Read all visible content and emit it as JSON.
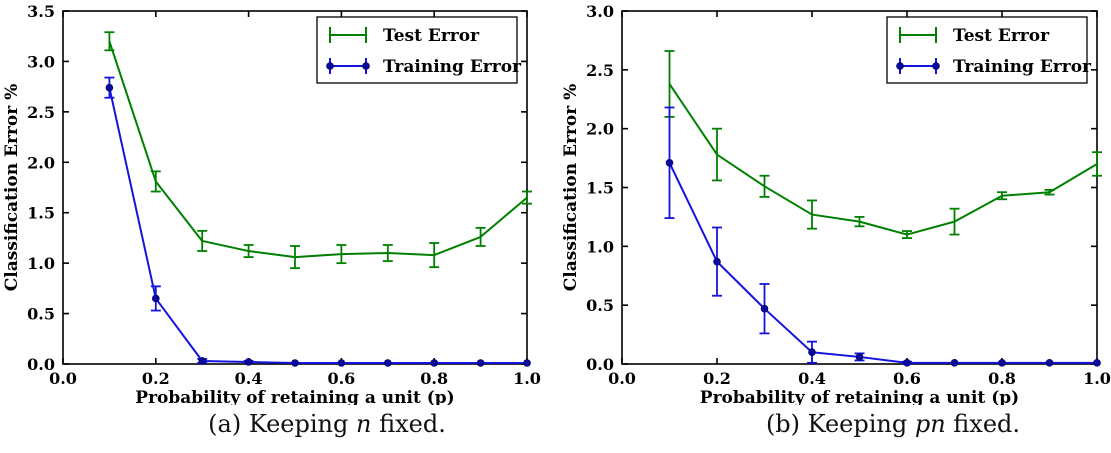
{
  "figure": {
    "background": "#ffffff",
    "axis_color": "#000000",
    "text_color": "#000000"
  },
  "legend": {
    "entries": [
      {
        "label": "Test Error",
        "color": "#008000",
        "marker": "none"
      },
      {
        "label": "Training Error",
        "color": "#1414dc",
        "marker": "circle"
      }
    ]
  },
  "chart_data": [
    {
      "id": "a",
      "type": "line",
      "title": "",
      "xlabel": "Probability of retaining a unit (p)",
      "ylabel": "Classification Error %",
      "xlim": [
        0.0,
        1.0
      ],
      "ylim": [
        0.0,
        3.5
      ],
      "xticks": [
        0.0,
        0.2,
        0.4,
        0.6,
        0.8,
        1.0
      ],
      "xtick_labels": [
        "0.0",
        "0.2",
        "0.4",
        "0.6",
        "0.8",
        "1.0"
      ],
      "yticks": [
        0.0,
        0.5,
        1.0,
        1.5,
        2.0,
        2.5,
        3.0,
        3.5
      ],
      "ytick_labels": [
        "0.0",
        "0.5",
        "1.0",
        "1.5",
        "2.0",
        "2.5",
        "3.0",
        "3.5"
      ],
      "x": [
        0.1,
        0.2,
        0.3,
        0.4,
        0.5,
        0.6,
        0.7,
        0.8,
        0.9,
        1.0
      ],
      "legend_position": "upper right",
      "grid": false,
      "series": [
        {
          "name": "Test Error",
          "color": "#008000",
          "marker": "none",
          "values": [
            3.2,
            1.81,
            1.22,
            1.12,
            1.06,
            1.09,
            1.1,
            1.08,
            1.26,
            1.65
          ],
          "errors": [
            0.09,
            0.1,
            0.1,
            0.06,
            0.11,
            0.09,
            0.08,
            0.12,
            0.09,
            0.06
          ]
        },
        {
          "name": "Training Error",
          "color": "#1414dc",
          "marker": "circle",
          "values": [
            2.74,
            0.65,
            0.03,
            0.02,
            0.01,
            0.01,
            0.01,
            0.01,
            0.01,
            0.01
          ],
          "errors": [
            0.1,
            0.12,
            0.02,
            0.01,
            0.0,
            0.0,
            0.0,
            0.0,
            0.0,
            0.0
          ]
        }
      ],
      "caption": {
        "prefix": "(a) Keeping ",
        "italic": "n",
        "suffix": " fixed."
      }
    },
    {
      "id": "b",
      "type": "line",
      "title": "",
      "xlabel": "Probability of retaining a unit (p)",
      "ylabel": "Classification Error %",
      "xlim": [
        0.0,
        1.0
      ],
      "ylim": [
        0.0,
        3.0
      ],
      "xticks": [
        0.0,
        0.2,
        0.4,
        0.6,
        0.8,
        1.0
      ],
      "xtick_labels": [
        "0.0",
        "0.2",
        "0.4",
        "0.6",
        "0.8",
        "1.0"
      ],
      "yticks": [
        0.0,
        0.5,
        1.0,
        1.5,
        2.0,
        2.5,
        3.0
      ],
      "ytick_labels": [
        "0.0",
        "0.5",
        "1.0",
        "1.5",
        "2.0",
        "2.5",
        "3.0"
      ],
      "x": [
        0.1,
        0.2,
        0.3,
        0.4,
        0.5,
        0.6,
        0.7,
        0.8,
        0.9,
        1.0
      ],
      "legend_position": "upper right",
      "grid": false,
      "series": [
        {
          "name": "Test Error",
          "color": "#008000",
          "marker": "none",
          "values": [
            2.38,
            1.78,
            1.51,
            1.27,
            1.21,
            1.1,
            1.21,
            1.43,
            1.46,
            1.7
          ],
          "errors": [
            0.28,
            0.22,
            0.09,
            0.12,
            0.04,
            0.03,
            0.11,
            0.03,
            0.02,
            0.1
          ]
        },
        {
          "name": "Training Error",
          "color": "#1414dc",
          "marker": "circle",
          "values": [
            1.71,
            0.87,
            0.47,
            0.1,
            0.06,
            0.01,
            0.01,
            0.01,
            0.01,
            0.01
          ],
          "errors": [
            0.47,
            0.29,
            0.21,
            0.09,
            0.03,
            0.01,
            0.0,
            0.0,
            0.0,
            0.0
          ]
        }
      ],
      "caption": {
        "prefix": "(b) Keeping ",
        "italic": "pn",
        "suffix": " fixed."
      }
    }
  ]
}
